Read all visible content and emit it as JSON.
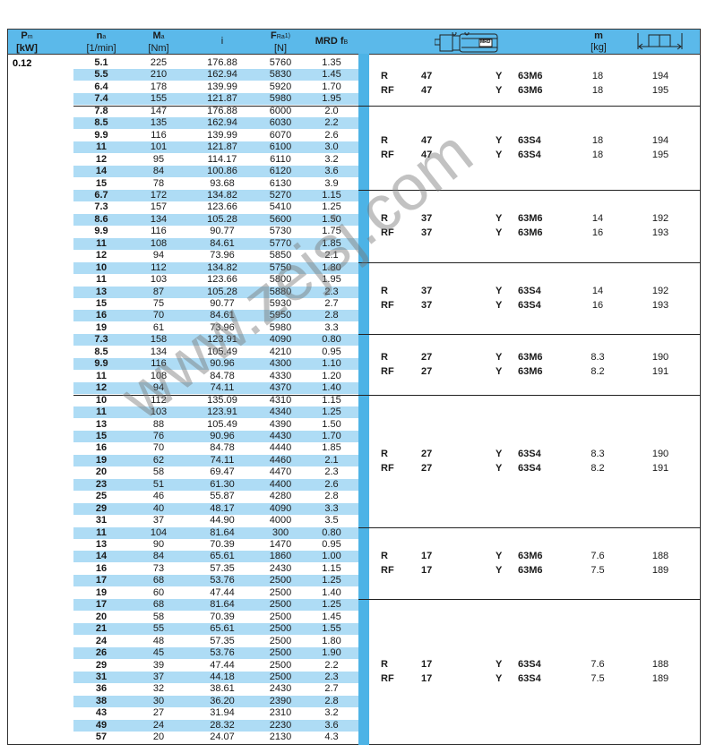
{
  "colors": {
    "header": "#5bb9ea",
    "stripe": "#aedcf5",
    "bar": "#4db3e6"
  },
  "header": {
    "pm": {
      "symbol": "P",
      "sub": "m",
      "unit": "[kW]"
    },
    "na": {
      "symbol": "n",
      "sub": "a",
      "unit": "[1/min]"
    },
    "ma": {
      "symbol": "M",
      "sub": "a",
      "unit": "[Nm]"
    },
    "i": {
      "symbol": "i"
    },
    "fra": {
      "symbol": "F",
      "sub": "Ra",
      "sup": "1)",
      "unit": "[N]"
    },
    "fb": {
      "symbol": "MRD f",
      "sub": "B"
    },
    "motor_icon": {
      "name": "gear-motor-icon",
      "label": "MRD"
    },
    "m": {
      "symbol": "m",
      "unit": "[kg]"
    },
    "page_icon": "book-page-icon"
  },
  "power": "0.12",
  "watermark": "www.zejsj.com",
  "groups": [
    {
      "rows": [
        [
          "5.1",
          "225",
          "176.88",
          "5760",
          "1.35"
        ],
        [
          "5.5",
          "210",
          "162.94",
          "5830",
          "1.45"
        ],
        [
          "6.4",
          "178",
          "139.99",
          "5920",
          "1.70"
        ],
        [
          "7.4",
          "155",
          "121.87",
          "5980",
          "1.95"
        ]
      ],
      "info": [
        [
          "R",
          "47",
          "Y",
          "63M6",
          "18",
          "194"
        ],
        [
          "RF",
          "47",
          "Y",
          "63M6",
          "18",
          "195"
        ]
      ]
    },
    {
      "rows": [
        [
          "7.8",
          "147",
          "176.88",
          "6000",
          "2.0"
        ],
        [
          "8.5",
          "135",
          "162.94",
          "6030",
          "2.2"
        ],
        [
          "9.9",
          "116",
          "139.99",
          "6070",
          "2.6"
        ],
        [
          "11",
          "101",
          "121.87",
          "6100",
          "3.0"
        ],
        [
          "12",
          "95",
          "114.17",
          "6110",
          "3.2"
        ],
        [
          "14",
          "84",
          "100.86",
          "6120",
          "3.6"
        ],
        [
          "15",
          "78",
          "93.68",
          "6130",
          "3.9"
        ]
      ],
      "info": [
        [
          "R",
          "47",
          "Y",
          "63S4",
          "18",
          "194"
        ],
        [
          "RF",
          "47",
          "Y",
          "63S4",
          "18",
          "195"
        ]
      ]
    },
    {
      "rows": [
        [
          "6.7",
          "172",
          "134.82",
          "5270",
          "1.15"
        ],
        [
          "7.3",
          "157",
          "123.66",
          "5410",
          "1.25"
        ],
        [
          "8.6",
          "134",
          "105.28",
          "5600",
          "1.50"
        ],
        [
          "9.9",
          "116",
          "90.77",
          "5730",
          "1.75"
        ],
        [
          "11",
          "108",
          "84.61",
          "5770",
          "1.85"
        ],
        [
          "12",
          "94",
          "73.96",
          "5850",
          "2.1"
        ]
      ],
      "info": [
        [
          "R",
          "37",
          "Y",
          "63M6",
          "14",
          "192"
        ],
        [
          "RF",
          "37",
          "Y",
          "63M6",
          "16",
          "193"
        ]
      ]
    },
    {
      "rows": [
        [
          "10",
          "112",
          "134.82",
          "5750",
          "1.80"
        ],
        [
          "11",
          "103",
          "123.66",
          "5800",
          "1.95"
        ],
        [
          "13",
          "87",
          "105.28",
          "5880",
          "2.3"
        ],
        [
          "15",
          "75",
          "90.77",
          "5930",
          "2.7"
        ],
        [
          "16",
          "70",
          "84.61",
          "5950",
          "2.8"
        ],
        [
          "19",
          "61",
          "73.96",
          "5980",
          "3.3"
        ]
      ],
      "info": [
        [
          "R",
          "37",
          "Y",
          "63S4",
          "14",
          "192"
        ],
        [
          "RF",
          "37",
          "Y",
          "63S4",
          "16",
          "193"
        ]
      ]
    },
    {
      "rows": [
        [
          "7.3",
          "158",
          "123.91",
          "4090",
          "0.80"
        ],
        [
          "8.5",
          "134",
          "105.49",
          "4210",
          "0.95"
        ],
        [
          "9.9",
          "116",
          "90.96",
          "4300",
          "1.10"
        ],
        [
          "11",
          "108",
          "84.78",
          "4330",
          "1.20"
        ],
        [
          "12",
          "94",
          "74.11",
          "4370",
          "1.40"
        ]
      ],
      "info": [
        [
          "R",
          "27",
          "Y",
          "63M6",
          "8.3",
          "190"
        ],
        [
          "RF",
          "27",
          "Y",
          "63M6",
          "8.2",
          "191"
        ]
      ]
    },
    {
      "rows": [
        [
          "10",
          "112",
          "135.09",
          "4310",
          "1.15"
        ],
        [
          "11",
          "103",
          "123.91",
          "4340",
          "1.25"
        ],
        [
          "13",
          "88",
          "105.49",
          "4390",
          "1.50"
        ],
        [
          "15",
          "76",
          "90.96",
          "4430",
          "1.70"
        ],
        [
          "16",
          "70",
          "84.78",
          "4440",
          "1.85"
        ],
        [
          "19",
          "62",
          "74.11",
          "4460",
          "2.1"
        ],
        [
          "20",
          "58",
          "69.47",
          "4470",
          "2.3"
        ],
        [
          "23",
          "51",
          "61.30",
          "4400",
          "2.6"
        ],
        [
          "25",
          "46",
          "55.87",
          "4280",
          "2.8"
        ],
        [
          "29",
          "40",
          "48.17",
          "4090",
          "3.3"
        ],
        [
          "31",
          "37",
          "44.90",
          "4000",
          "3.5"
        ]
      ],
      "info": [
        [
          "R",
          "27",
          "Y",
          "63S4",
          "8.3",
          "190"
        ],
        [
          "RF",
          "27",
          "Y",
          "63S4",
          "8.2",
          "191"
        ]
      ]
    },
    {
      "rows": [
        [
          "11",
          "104",
          "81.64",
          "300",
          "0.80"
        ],
        [
          "13",
          "90",
          "70.39",
          "1470",
          "0.95"
        ],
        [
          "14",
          "84",
          "65.61",
          "1860",
          "1.00"
        ],
        [
          "16",
          "73",
          "57.35",
          "2430",
          "1.15"
        ],
        [
          "17",
          "68",
          "53.76",
          "2500",
          "1.25"
        ],
        [
          "19",
          "60",
          "47.44",
          "2500",
          "1.40"
        ]
      ],
      "info": [
        [
          "R",
          "17",
          "Y",
          "63M6",
          "7.6",
          "188"
        ],
        [
          "RF",
          "17",
          "Y",
          "63M6",
          "7.5",
          "189"
        ]
      ]
    },
    {
      "rows": [
        [
          "17",
          "68",
          "81.64",
          "2500",
          "1.25"
        ],
        [
          "20",
          "58",
          "70.39",
          "2500",
          "1.45"
        ],
        [
          "21",
          "55",
          "65.61",
          "2500",
          "1.55"
        ],
        [
          "24",
          "48",
          "57.35",
          "2500",
          "1.80"
        ],
        [
          "26",
          "45",
          "53.76",
          "2500",
          "1.90"
        ],
        [
          "29",
          "39",
          "47.44",
          "2500",
          "2.2"
        ],
        [
          "31",
          "37",
          "44.18",
          "2500",
          "2.3"
        ],
        [
          "36",
          "32",
          "38.61",
          "2430",
          "2.7"
        ],
        [
          "38",
          "30",
          "36.20",
          "2390",
          "2.8"
        ],
        [
          "43",
          "27",
          "31.94",
          "2310",
          "3.2"
        ],
        [
          "49",
          "24",
          "28.32",
          "2230",
          "3.6"
        ],
        [
          "57",
          "20",
          "24.07",
          "2130",
          "4.3"
        ]
      ],
      "info": [
        [
          "R",
          "17",
          "Y",
          "63S4",
          "7.6",
          "188"
        ],
        [
          "RF",
          "17",
          "Y",
          "63S4",
          "7.5",
          "189"
        ]
      ]
    }
  ]
}
